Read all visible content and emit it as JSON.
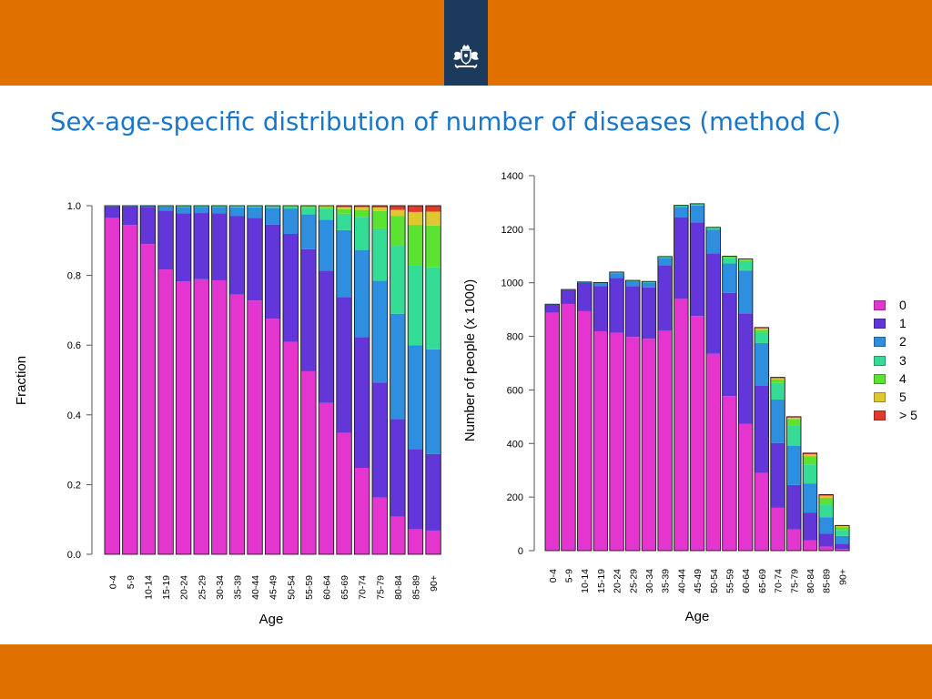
{
  "slide": {
    "title": "Sex-age-specific distribution of number of diseases (method C)",
    "accent_color": "#e07000",
    "title_color": "#1a76c9",
    "emblem_color": "#1b3a5c"
  },
  "legend": [
    {
      "label": "0",
      "color": "#e535cf"
    },
    {
      "label": "1",
      "color": "#6236d8"
    },
    {
      "label": "2",
      "color": "#2e8fe0"
    },
    {
      "label": "3",
      "color": "#34dc96"
    },
    {
      "label": "4",
      "color": "#5ce230"
    },
    {
      "label": "5",
      "color": "#e0c62f"
    },
    {
      "label": "> 5",
      "color": "#e03a2e"
    }
  ],
  "chart_data": [
    {
      "type": "bar",
      "stacked": true,
      "title": "",
      "xlabel": "Age",
      "ylabel": "Fraction",
      "ylim": [
        0,
        1
      ],
      "yticks": [
        0,
        0.2,
        0.4,
        0.6,
        0.8,
        1.0
      ],
      "ytick_labels": [
        "0.0",
        "0.2",
        "0.4",
        "0.6",
        "0.8",
        "1.0"
      ],
      "categories": [
        "0-4",
        "5-9",
        "10-14",
        "15-19",
        "20-24",
        "25-29",
        "30-34",
        "35-39",
        "40-44",
        "45-49",
        "50-54",
        "55-59",
        "60-64",
        "65-69",
        "70-74",
        "75-79",
        "80-84",
        "85-89",
        "90+"
      ],
      "series": [
        {
          "name": "0",
          "values": [
            0.965,
            0.945,
            0.89,
            0.817,
            0.783,
            0.789,
            0.786,
            0.745,
            0.728,
            0.676,
            0.609,
            0.525,
            0.434,
            0.348,
            0.248,
            0.163,
            0.108,
            0.072,
            0.068
          ]
        },
        {
          "name": "1",
          "values": [
            0.033,
            0.053,
            0.106,
            0.169,
            0.195,
            0.19,
            0.192,
            0.225,
            0.237,
            0.27,
            0.31,
            0.35,
            0.38,
            0.39,
            0.375,
            0.33,
            0.28,
            0.23,
            0.22
          ]
        },
        {
          "name": "2",
          "values": [
            0.002,
            0.002,
            0.004,
            0.012,
            0.018,
            0.018,
            0.018,
            0.025,
            0.03,
            0.048,
            0.073,
            0.1,
            0.146,
            0.192,
            0.25,
            0.292,
            0.302,
            0.298,
            0.3
          ]
        },
        {
          "name": "3",
          "values": [
            0,
            0,
            0,
            0.002,
            0.003,
            0.003,
            0.003,
            0.004,
            0.004,
            0.005,
            0.006,
            0.019,
            0.03,
            0.047,
            0.095,
            0.15,
            0.195,
            0.23,
            0.235
          ]
        },
        {
          "name": "4",
          "values": [
            0,
            0,
            0,
            0,
            0.001,
            0,
            0.001,
            0.001,
            0.001,
            0.001,
            0.002,
            0.005,
            0.006,
            0.013,
            0.02,
            0.05,
            0.085,
            0.115,
            0.12
          ]
        },
        {
          "name": "5",
          "values": [
            0,
            0,
            0,
            0,
            0,
            0,
            0,
            0,
            0,
            0,
            0,
            0.001,
            0.003,
            0.006,
            0.008,
            0.01,
            0.018,
            0.037,
            0.04
          ]
        },
        {
          "name": "> 5",
          "values": [
            0,
            0,
            0,
            0,
            0,
            0,
            0,
            0,
            0,
            0,
            0,
            0,
            0.001,
            0.004,
            0.004,
            0.005,
            0.012,
            0.018,
            0.017
          ]
        }
      ]
    },
    {
      "type": "bar",
      "stacked": true,
      "title": "",
      "xlabel": "Age",
      "ylabel": "Number of people (x 1000)",
      "ylim": [
        0,
        1400
      ],
      "yticks": [
        0,
        200,
        400,
        600,
        800,
        1000,
        1200,
        1400
      ],
      "ytick_labels": [
        "0",
        "200",
        "400",
        "600",
        "800",
        "1000",
        "1200",
        "1400"
      ],
      "categories": [
        "0-4",
        "5-9",
        "10-14",
        "15-19",
        "20-24",
        "25-29",
        "30-34",
        "35-39",
        "40-44",
        "45-49",
        "50-54",
        "55-59",
        "60-64",
        "65-69",
        "70-74",
        "75-79",
        "80-84",
        "85-89",
        "90+"
      ],
      "series": [
        {
          "name": "0",
          "values": [
            888,
            921,
            894,
            819,
            813,
            798,
            791,
            821,
            940,
            876,
            735,
            577,
            474,
            290,
            160,
            80,
            39,
            15,
            6
          ]
        },
        {
          "name": "1",
          "values": [
            30,
            52,
            105,
            168,
            205,
            190,
            192,
            245,
            305,
            350,
            375,
            385,
            412,
            325,
            242,
            165,
            102,
            48,
            20
          ]
        },
        {
          "name": "2",
          "values": [
            2,
            2,
            4,
            12,
            18,
            18,
            18,
            27,
            38,
            62,
            88,
            110,
            160,
            160,
            162,
            147,
            110,
            62,
            29
          ]
        },
        {
          "name": "3",
          "values": [
            0,
            0,
            0,
            2,
            3,
            3,
            3,
            4,
            5,
            6,
            7,
            21,
            33,
            39,
            62,
            75,
            71,
            48,
            22
          ]
        },
        {
          "name": "4",
          "values": [
            0,
            0,
            0,
            0,
            1,
            0,
            1,
            1,
            1,
            1,
            2,
            5,
            6,
            11,
            13,
            25,
            31,
            24,
            11
          ]
        },
        {
          "name": "5",
          "values": [
            0,
            0,
            0,
            0,
            0,
            0,
            0,
            0,
            0,
            0,
            0,
            1,
            3,
            5,
            5,
            5,
            7,
            8,
            4
          ]
        },
        {
          "name": "> 5",
          "values": [
            0,
            0,
            0,
            0,
            0,
            0,
            0,
            0,
            0,
            0,
            0,
            0,
            1,
            3,
            3,
            3,
            4,
            4,
            2
          ]
        }
      ]
    }
  ]
}
